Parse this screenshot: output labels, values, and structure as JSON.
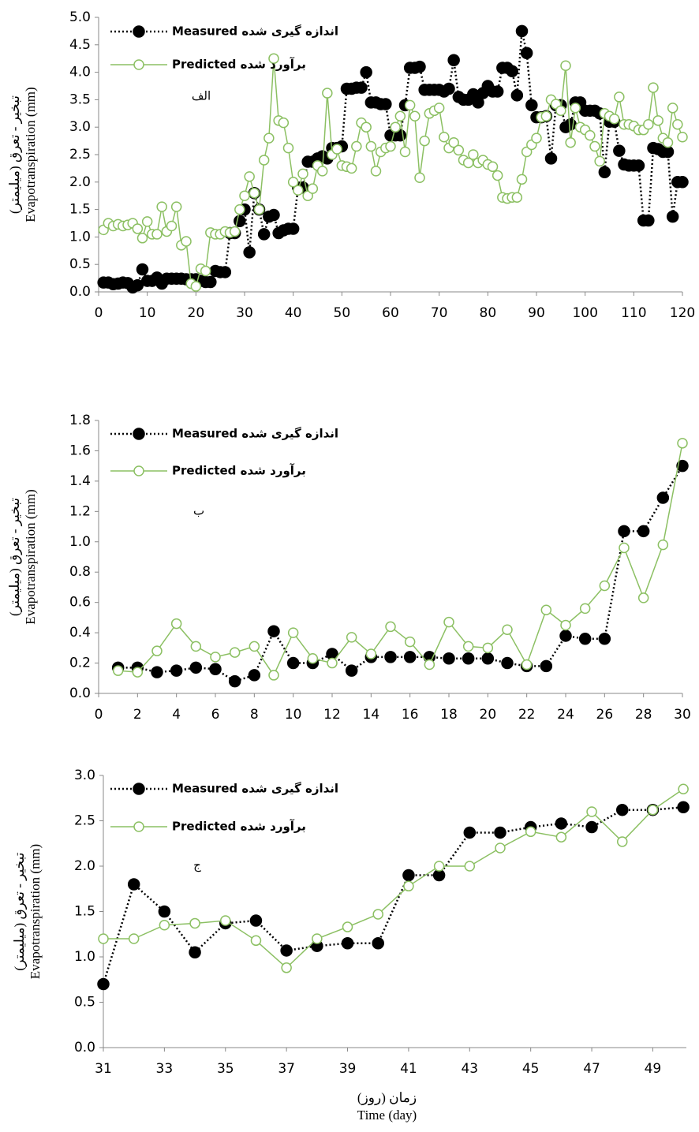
{
  "chart_data": [
    {
      "type": "line",
      "ylabel": [
        "تبخیر - تعرق (میلیمتر)",
        "Evapotranspiration (mm)"
      ],
      "annotation": "الف",
      "x": [
        1,
        2,
        3,
        4,
        5,
        6,
        7,
        8,
        9,
        10,
        11,
        12,
        13,
        14,
        15,
        16,
        17,
        18,
        19,
        20,
        21,
        22,
        23,
        24,
        25,
        26,
        27,
        28,
        29,
        30,
        31,
        32,
        33,
        34,
        35,
        36,
        37,
        38,
        39,
        40,
        41,
        42,
        43,
        44,
        45,
        46,
        47,
        48,
        49,
        50,
        51,
        52,
        53,
        54,
        55,
        56,
        57,
        58,
        59,
        60,
        61,
        62,
        63,
        64,
        65,
        66,
        67,
        68,
        69,
        70,
        71,
        72,
        73,
        74,
        75,
        76,
        77,
        78,
        79,
        80,
        81,
        82,
        83,
        84,
        85,
        86,
        87,
        88,
        89,
        90,
        91,
        92,
        93,
        94,
        95,
        96,
        97,
        98,
        99,
        100,
        101,
        102,
        103,
        104,
        105,
        106,
        107,
        108,
        109,
        110,
        111,
        112,
        113,
        114,
        115,
        116,
        117,
        118,
        119,
        120
      ],
      "series": [
        {
          "name": "Measured اندازه گیری شده",
          "color": "#000000",
          "values": [
            0.17,
            0.17,
            0.14,
            0.15,
            0.17,
            0.16,
            0.08,
            0.12,
            0.41,
            0.2,
            0.2,
            0.26,
            0.15,
            0.24,
            0.24,
            0.24,
            0.24,
            0.23,
            0.23,
            0.23,
            0.2,
            0.18,
            0.18,
            0.38,
            0.36,
            0.36,
            1.07,
            1.07,
            1.29,
            1.5,
            0.72,
            1.8,
            1.5,
            1.05,
            1.37,
            1.4,
            1.07,
            1.12,
            1.15,
            1.15,
            1.9,
            1.9,
            2.37,
            2.37,
            2.43,
            2.47,
            2.43,
            2.62,
            2.62,
            2.65,
            3.7,
            3.7,
            3.72,
            3.72,
            4.0,
            3.45,
            3.45,
            3.42,
            3.42,
            2.85,
            2.85,
            2.85,
            3.4,
            4.08,
            4.08,
            4.1,
            3.68,
            3.68,
            3.68,
            3.68,
            3.65,
            3.7,
            4.22,
            3.55,
            3.5,
            3.5,
            3.6,
            3.45,
            3.62,
            3.75,
            3.65,
            3.65,
            4.08,
            4.08,
            4.02,
            3.58,
            4.75,
            4.35,
            3.4,
            3.18,
            3.18,
            3.2,
            2.43,
            3.4,
            3.4,
            3.0,
            3.05,
            3.45,
            3.45,
            3.3,
            3.3,
            3.3,
            3.25,
            2.18,
            3.1,
            3.1,
            2.57,
            2.32,
            2.3,
            2.3,
            2.3,
            1.3,
            1.3,
            2.62,
            2.6,
            2.55,
            2.55,
            1.37,
            2.0,
            2.0
          ]
        },
        {
          "name": "Predicted برآورد شده",
          "color": "#8cc063",
          "values": [
            1.13,
            1.25,
            1.2,
            1.23,
            1.2,
            1.22,
            1.25,
            1.15,
            0.98,
            1.28,
            1.05,
            1.05,
            1.55,
            1.1,
            1.2,
            1.55,
            0.85,
            0.92,
            0.15,
            0.1,
            0.42,
            0.38,
            1.08,
            1.05,
            1.05,
            1.1,
            1.08,
            1.1,
            1.5,
            1.75,
            2.1,
            1.8,
            1.5,
            2.4,
            2.8,
            4.25,
            3.12,
            3.08,
            2.62,
            2.0,
            1.85,
            2.15,
            1.75,
            1.88,
            2.3,
            2.2,
            3.62,
            2.5,
            2.6,
            2.3,
            2.28,
            2.25,
            2.65,
            3.08,
            3.0,
            2.65,
            2.2,
            2.55,
            2.62,
            2.65,
            3.0,
            3.2,
            2.55,
            3.4,
            3.2,
            2.08,
            2.75,
            3.25,
            3.3,
            3.35,
            2.82,
            2.62,
            2.72,
            2.58,
            2.4,
            2.35,
            2.5,
            2.35,
            2.4,
            2.32,
            2.28,
            2.12,
            1.72,
            1.7,
            1.72,
            1.72,
            2.05,
            2.55,
            2.68,
            2.8,
            3.18,
            3.2,
            3.5,
            3.42,
            3.3,
            4.12,
            2.72,
            3.35,
            3.0,
            2.95,
            2.85,
            2.65,
            2.38,
            3.25,
            3.2,
            3.15,
            3.55,
            3.05,
            3.05,
            3.02,
            2.95,
            2.95,
            3.05,
            3.72,
            3.12,
            2.8,
            2.72,
            3.35,
            3.05,
            2.82
          ]
        }
      ],
      "xlim": [
        0,
        120
      ],
      "xticks": [
        0,
        10,
        20,
        30,
        40,
        50,
        60,
        70,
        80,
        90,
        100,
        110,
        120
      ],
      "ylim": [
        0,
        5
      ],
      "yticks": [
        {
          "value": 0,
          "label": "0.0"
        },
        {
          "value": 0.5,
          "label": "0.5"
        },
        {
          "value": 1,
          "label": "1.0"
        },
        {
          "value": 1.5,
          "label": "1.5"
        },
        {
          "value": 2,
          "label": "2.0"
        },
        {
          "value": 2.5,
          "label": "2.5"
        },
        {
          "value": 3,
          "label": "3.0"
        },
        {
          "value": 3.5,
          "label": "3.5"
        },
        {
          "value": 4,
          "label": "4.0"
        },
        {
          "value": 4.5,
          "label": "4.5"
        },
        {
          "value": 5,
          "label": "5.0"
        }
      ],
      "grid": false
    },
    {
      "type": "line",
      "ylabel": [
        "تبخیر - تعرق (میلیمتر)",
        "Evapotranspiration (mm)"
      ],
      "annotation": "ب",
      "x": [
        1,
        2,
        3,
        4,
        5,
        6,
        7,
        8,
        9,
        10,
        11,
        12,
        13,
        14,
        15,
        16,
        17,
        18,
        19,
        20,
        21,
        22,
        23,
        24,
        25,
        26,
        27,
        28,
        29,
        30
      ],
      "series": [
        {
          "name": "Measured اندازه گیری شده",
          "color": "#000000",
          "values": [
            0.17,
            0.17,
            0.14,
            0.15,
            0.17,
            0.16,
            0.08,
            0.12,
            0.41,
            0.2,
            0.2,
            0.26,
            0.15,
            0.24,
            0.24,
            0.24,
            0.24,
            0.23,
            0.23,
            0.23,
            0.2,
            0.18,
            0.18,
            0.38,
            0.36,
            0.36,
            1.07,
            1.07,
            1.29,
            1.5
          ]
        },
        {
          "name": "Predicted برآورد شده",
          "color": "#8cc063",
          "values": [
            0.15,
            0.14,
            0.28,
            0.46,
            0.31,
            0.24,
            0.27,
            0.31,
            0.12,
            0.4,
            0.23,
            0.2,
            0.37,
            0.26,
            0.44,
            0.34,
            0.19,
            0.47,
            0.31,
            0.3,
            0.42,
            0.19,
            0.55,
            0.45,
            0.56,
            0.71,
            0.96,
            0.63,
            0.98,
            1.65
          ]
        }
      ],
      "xlim": [
        0,
        30
      ],
      "xticks": [
        0,
        2,
        4,
        6,
        8,
        10,
        12,
        14,
        16,
        18,
        20,
        22,
        24,
        26,
        28,
        30
      ],
      "ylim": [
        0,
        1.8
      ],
      "yticks": [
        {
          "value": 0,
          "label": "0.0"
        },
        {
          "value": 0.2,
          "label": "0.2"
        },
        {
          "value": 0.4,
          "label": "0.4"
        },
        {
          "value": 0.6,
          "label": "0.6"
        },
        {
          "value": 0.8,
          "label": "0.8"
        },
        {
          "value": 1,
          "label": "1.0"
        },
        {
          "value": 1.2,
          "label": "1.2"
        },
        {
          "value": 1.4,
          "label": "1.4"
        },
        {
          "value": 1.6,
          "label": "1.6"
        },
        {
          "value": 1.8,
          "label": "1.8"
        }
      ],
      "grid": false
    },
    {
      "type": "line",
      "ylabel": [
        "تبخیر - تعرق (میلیمتر)",
        "Evapotranspiration (mm)"
      ],
      "xlabel": [
        "زمان (روز)",
        "Time (day)"
      ],
      "annotation": "ج",
      "x": [
        31,
        32,
        33,
        34,
        35,
        36,
        37,
        38,
        39,
        40,
        41,
        42,
        43,
        44,
        45,
        46,
        47,
        48,
        49,
        50
      ],
      "series": [
        {
          "name": "Measured اندازه گیری شده",
          "color": "#000000",
          "values": [
            0.7,
            1.8,
            1.5,
            1.05,
            1.37,
            1.4,
            1.07,
            1.12,
            1.15,
            1.15,
            1.9,
            1.9,
            2.37,
            2.37,
            2.43,
            2.47,
            2.43,
            2.62,
            2.62,
            2.65
          ]
        },
        {
          "name": "Predicted برآورد شده",
          "color": "#8cc063",
          "values": [
            1.2,
            1.2,
            1.35,
            1.37,
            1.4,
            1.18,
            0.88,
            1.2,
            1.33,
            1.47,
            1.78,
            2.0,
            2.0,
            2.2,
            2.38,
            2.32,
            2.6,
            2.27,
            2.62,
            2.85
          ]
        }
      ],
      "xlim": [
        31,
        50.1
      ],
      "xticks": [
        31,
        33,
        35,
        37,
        39,
        41,
        43,
        45,
        47,
        49
      ],
      "ylim": [
        0,
        3
      ],
      "yticks": [
        {
          "value": 0,
          "label": "0.0"
        },
        {
          "value": 0.5,
          "label": "0.5"
        },
        {
          "value": 1,
          "label": "1.0"
        },
        {
          "value": 1.5,
          "label": "1.5"
        },
        {
          "value": 2,
          "label": "2.0"
        },
        {
          "value": 2.5,
          "label": "2.5"
        },
        {
          "value": 3,
          "label": "3.0"
        }
      ],
      "grid": false
    }
  ]
}
